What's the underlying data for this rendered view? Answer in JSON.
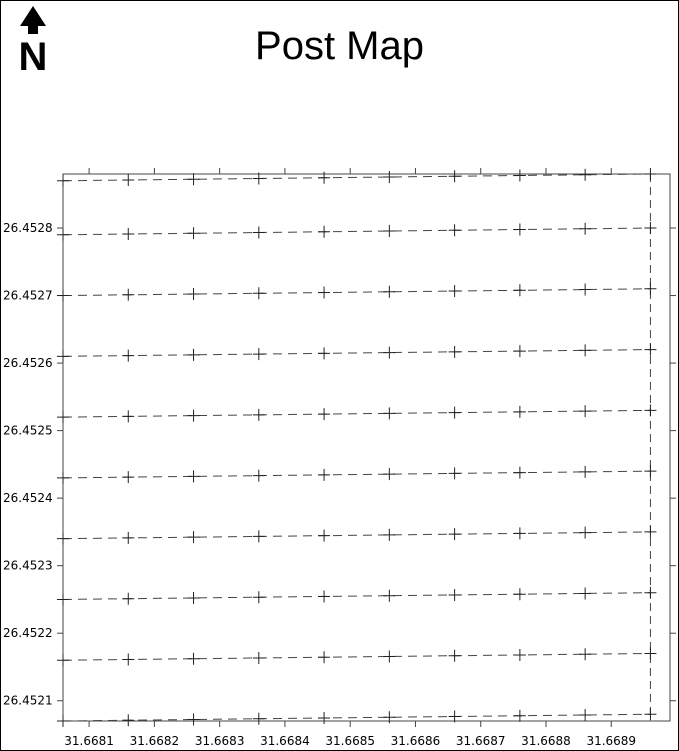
{
  "title": "Post Map",
  "north_arrow": {
    "icon": "north-arrow-icon",
    "letter": "N"
  },
  "chart_data": {
    "type": "scatter",
    "title": "Post Map",
    "xlabel": "",
    "ylabel": "",
    "xlim": [
      31.66806,
      31.66899
    ],
    "ylim": [
      26.45207,
      26.45288
    ],
    "x_ticks": [
      "31.6681",
      "31.6682",
      "31.6683",
      "31.6684",
      "31.6685",
      "31.6686",
      "31.6687",
      "31.6688",
      "31.6689"
    ],
    "y_ticks": [
      "26.4521",
      "26.4522",
      "26.4523",
      "26.4524",
      "26.4525",
      "26.4526",
      "26.4527",
      "26.4528"
    ],
    "marker": "plus",
    "line_style": "dashed",
    "x": [
      31.66806,
      31.66816,
      31.66826,
      31.66836,
      31.66846,
      31.66856,
      31.66866,
      31.66876,
      31.66886,
      31.66896
    ],
    "rows": [
      {
        "y0": 26.45287,
        "y1": 26.45288
      },
      {
        "y0": 26.45279,
        "y1": 26.4528
      },
      {
        "y0": 26.4527,
        "y1": 26.45271
      },
      {
        "y0": 26.45261,
        "y1": 26.45262
      },
      {
        "y0": 26.45252,
        "y1": 26.45253
      },
      {
        "y0": 26.45243,
        "y1": 26.45244
      },
      {
        "y0": 26.45234,
        "y1": 26.45235
      },
      {
        "y0": 26.45225,
        "y1": 26.45226
      },
      {
        "y0": 26.45216,
        "y1": 26.45217
      },
      {
        "y0": 26.45207,
        "y1": 26.45208
      }
    ]
  }
}
